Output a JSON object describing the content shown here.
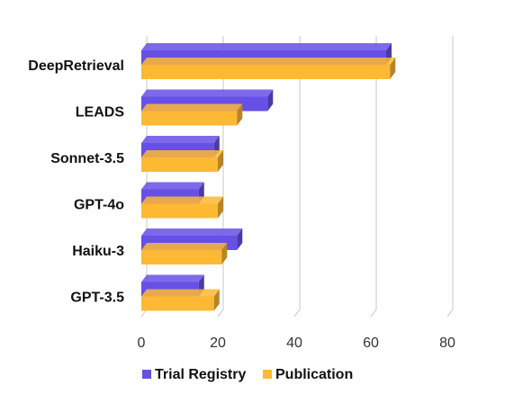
{
  "chart_data": {
    "type": "bar",
    "orientation": "horizontal",
    "style": "3d",
    "categories": [
      "DeepRetrieval",
      "LEADS",
      "Sonnet-3.5",
      "GPT-4o",
      "Haiku-3",
      "GPT-3.5"
    ],
    "series": [
      {
        "name": "Trial Registry",
        "values": [
          64,
          33,
          19,
          15,
          25,
          15
        ],
        "color": "#6650E6"
      },
      {
        "name": "Publication",
        "values": [
          65,
          25,
          20,
          20,
          21,
          19
        ],
        "color": "#FDB933"
      }
    ],
    "x_ticks": [
      "0",
      "20",
      "40",
      "60",
      "80"
    ],
    "xlim": [
      0,
      80
    ],
    "grid": true,
    "legend_position": "bottom",
    "title": "",
    "xlabel": "",
    "ylabel": ""
  }
}
